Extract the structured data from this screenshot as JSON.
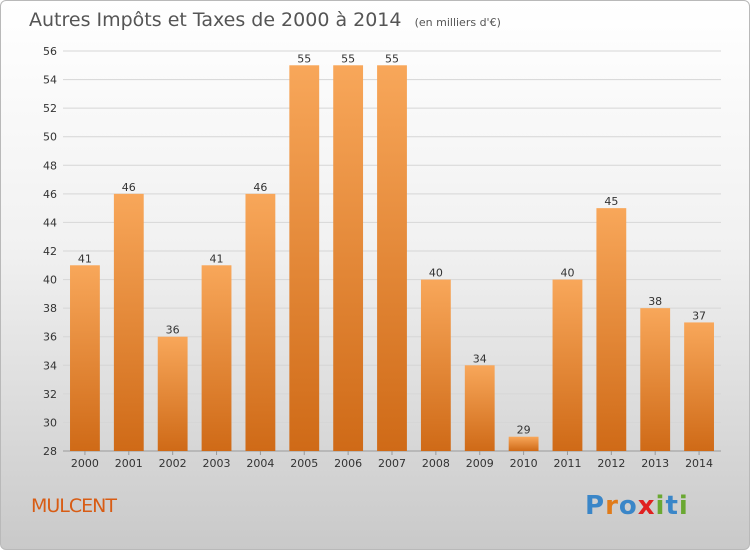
{
  "header": {
    "title": "Autres Impôts et Taxes de 2000 à 2014",
    "unit": "(en milliers d'€)"
  },
  "footer": {
    "commune": "MULCENT",
    "logo_text": "Proxiti",
    "logo_colors": [
      "#3a86c8",
      "#e07b1a",
      "#3a86c8",
      "#e02020",
      "#6aa832",
      "#3a86c8",
      "#6aa832"
    ]
  },
  "colors": {
    "bar_light": "#f8a75a",
    "bar_dark": "#cf6a17",
    "grid": "#d6d6d6",
    "commune": "#d85c14"
  },
  "chart_data": {
    "type": "bar",
    "title": "Autres Impôts et Taxes de 2000 à 2014",
    "subtitle": "(en milliers d'€)",
    "xlabel": "",
    "ylabel": "",
    "categories": [
      "2000",
      "2001",
      "2002",
      "2003",
      "2004",
      "2005",
      "2006",
      "2007",
      "2008",
      "2009",
      "2010",
      "2011",
      "2012",
      "2013",
      "2014"
    ],
    "values": [
      41,
      46,
      36,
      41,
      46,
      55,
      55,
      55,
      40,
      34,
      29,
      40,
      45,
      38,
      37
    ],
    "ylim": [
      28,
      56
    ],
    "yticks": [
      28,
      30,
      32,
      34,
      36,
      38,
      40,
      42,
      44,
      46,
      48,
      50,
      52,
      54,
      56
    ],
    "grid": true,
    "data_labels": true
  }
}
